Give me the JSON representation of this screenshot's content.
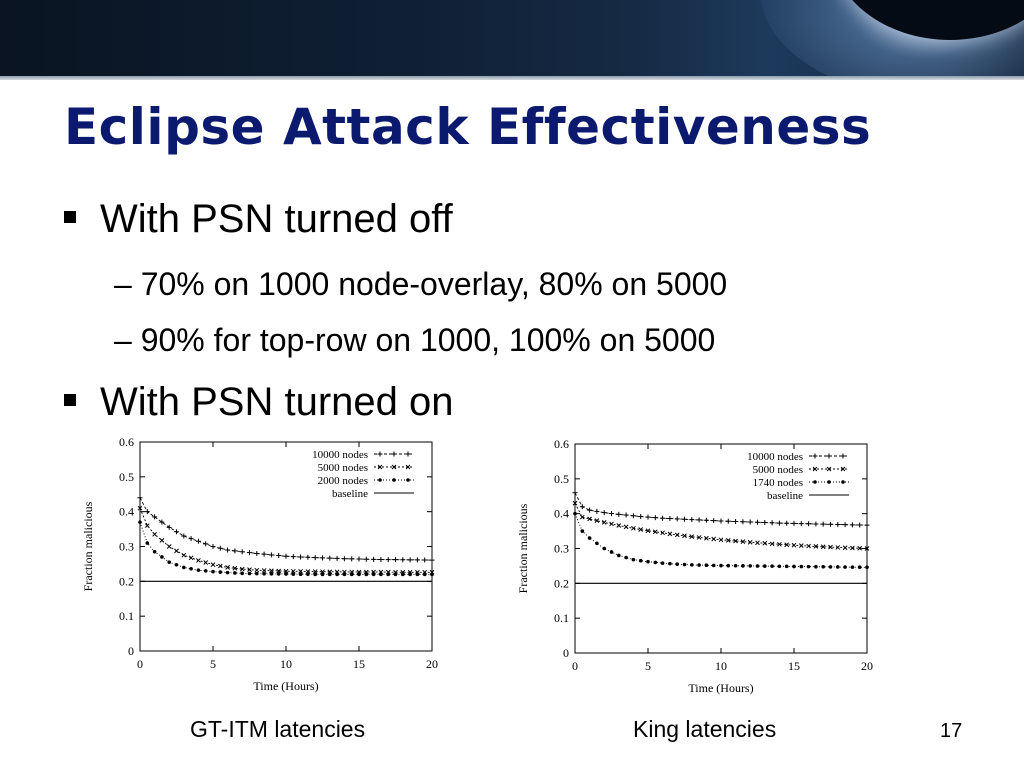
{
  "slide": {
    "title": "Eclipse Attack Effectiveness",
    "bullets": [
      {
        "text": "With PSN turned off"
      },
      {
        "text": "With PSN turned on"
      }
    ],
    "subbullets": [
      {
        "text": "– 70% on 1000 node-overlay, 80% on 5000"
      },
      {
        "text": "– 90% for top-row on 1000, 100% on 5000"
      }
    ],
    "captions": [
      "GT-ITM latencies",
      "King latencies"
    ],
    "page_number": "17"
  },
  "chart_data": [
    {
      "type": "line",
      "title": "",
      "xlabel": "Time (Hours)",
      "ylabel": "Fraction malicious",
      "xlim": [
        0,
        20
      ],
      "ylim": [
        0,
        0.6
      ],
      "xticks": [
        "0",
        "5",
        "10",
        "15",
        "20"
      ],
      "yticks": [
        "0",
        "0.1",
        "0.2",
        "0.3",
        "0.4",
        "0.5",
        "0.6"
      ],
      "grid": false,
      "legend_position": "top-right",
      "x": [
        0,
        0.5,
        1,
        2,
        3,
        4,
        5,
        6,
        7,
        8,
        10,
        12,
        14,
        16,
        18,
        20
      ],
      "series": [
        {
          "name": "10000 nodes",
          "values": [
            0.44,
            0.4,
            0.385,
            0.355,
            0.33,
            0.315,
            0.3,
            0.29,
            0.285,
            0.28,
            0.272,
            0.268,
            0.265,
            0.263,
            0.262,
            0.261
          ]
        },
        {
          "name": "5000 nodes",
          "values": [
            0.41,
            0.36,
            0.335,
            0.3,
            0.275,
            0.26,
            0.248,
            0.24,
            0.235,
            0.232,
            0.229,
            0.228,
            0.227,
            0.227,
            0.226,
            0.226
          ]
        },
        {
          "name": "2000 nodes",
          "values": [
            0.37,
            0.31,
            0.285,
            0.255,
            0.24,
            0.232,
            0.228,
            0.225,
            0.223,
            0.222,
            0.221,
            0.22,
            0.22,
            0.22,
            0.22,
            0.22
          ]
        },
        {
          "name": "baseline",
          "values": [
            0.2,
            0.2,
            0.2,
            0.2,
            0.2,
            0.2,
            0.2,
            0.2,
            0.2,
            0.2,
            0.2,
            0.2,
            0.2,
            0.2,
            0.2,
            0.2
          ]
        }
      ]
    },
    {
      "type": "line",
      "title": "",
      "xlabel": "Time (Hours)",
      "ylabel": "Fraction malicious",
      "xlim": [
        0,
        20
      ],
      "ylim": [
        0,
        0.6
      ],
      "xticks": [
        "0",
        "5",
        "10",
        "15",
        "20"
      ],
      "yticks": [
        "0",
        "0.1",
        "0.2",
        "0.3",
        "0.4",
        "0.5",
        "0.6"
      ],
      "grid": false,
      "legend_position": "top-right",
      "x": [
        0,
        0.5,
        1,
        2,
        3,
        4,
        5,
        6,
        7,
        8,
        10,
        12,
        14,
        16,
        18,
        20
      ],
      "series": [
        {
          "name": "10000 nodes",
          "values": [
            0.46,
            0.42,
            0.41,
            0.403,
            0.398,
            0.394,
            0.39,
            0.387,
            0.385,
            0.383,
            0.379,
            0.376,
            0.373,
            0.371,
            0.369,
            0.367
          ]
        },
        {
          "name": "5000 nodes",
          "values": [
            0.43,
            0.39,
            0.385,
            0.375,
            0.366,
            0.358,
            0.351,
            0.345,
            0.339,
            0.334,
            0.325,
            0.318,
            0.312,
            0.307,
            0.303,
            0.3
          ]
        },
        {
          "name": "1740 nodes",
          "values": [
            0.4,
            0.35,
            0.33,
            0.3,
            0.28,
            0.268,
            0.262,
            0.258,
            0.255,
            0.253,
            0.251,
            0.25,
            0.249,
            0.248,
            0.247,
            0.246
          ]
        },
        {
          "name": "baseline",
          "values": [
            0.2,
            0.2,
            0.2,
            0.2,
            0.2,
            0.2,
            0.2,
            0.2,
            0.2,
            0.2,
            0.2,
            0.2,
            0.2,
            0.2,
            0.2,
            0.2
          ]
        }
      ]
    }
  ]
}
